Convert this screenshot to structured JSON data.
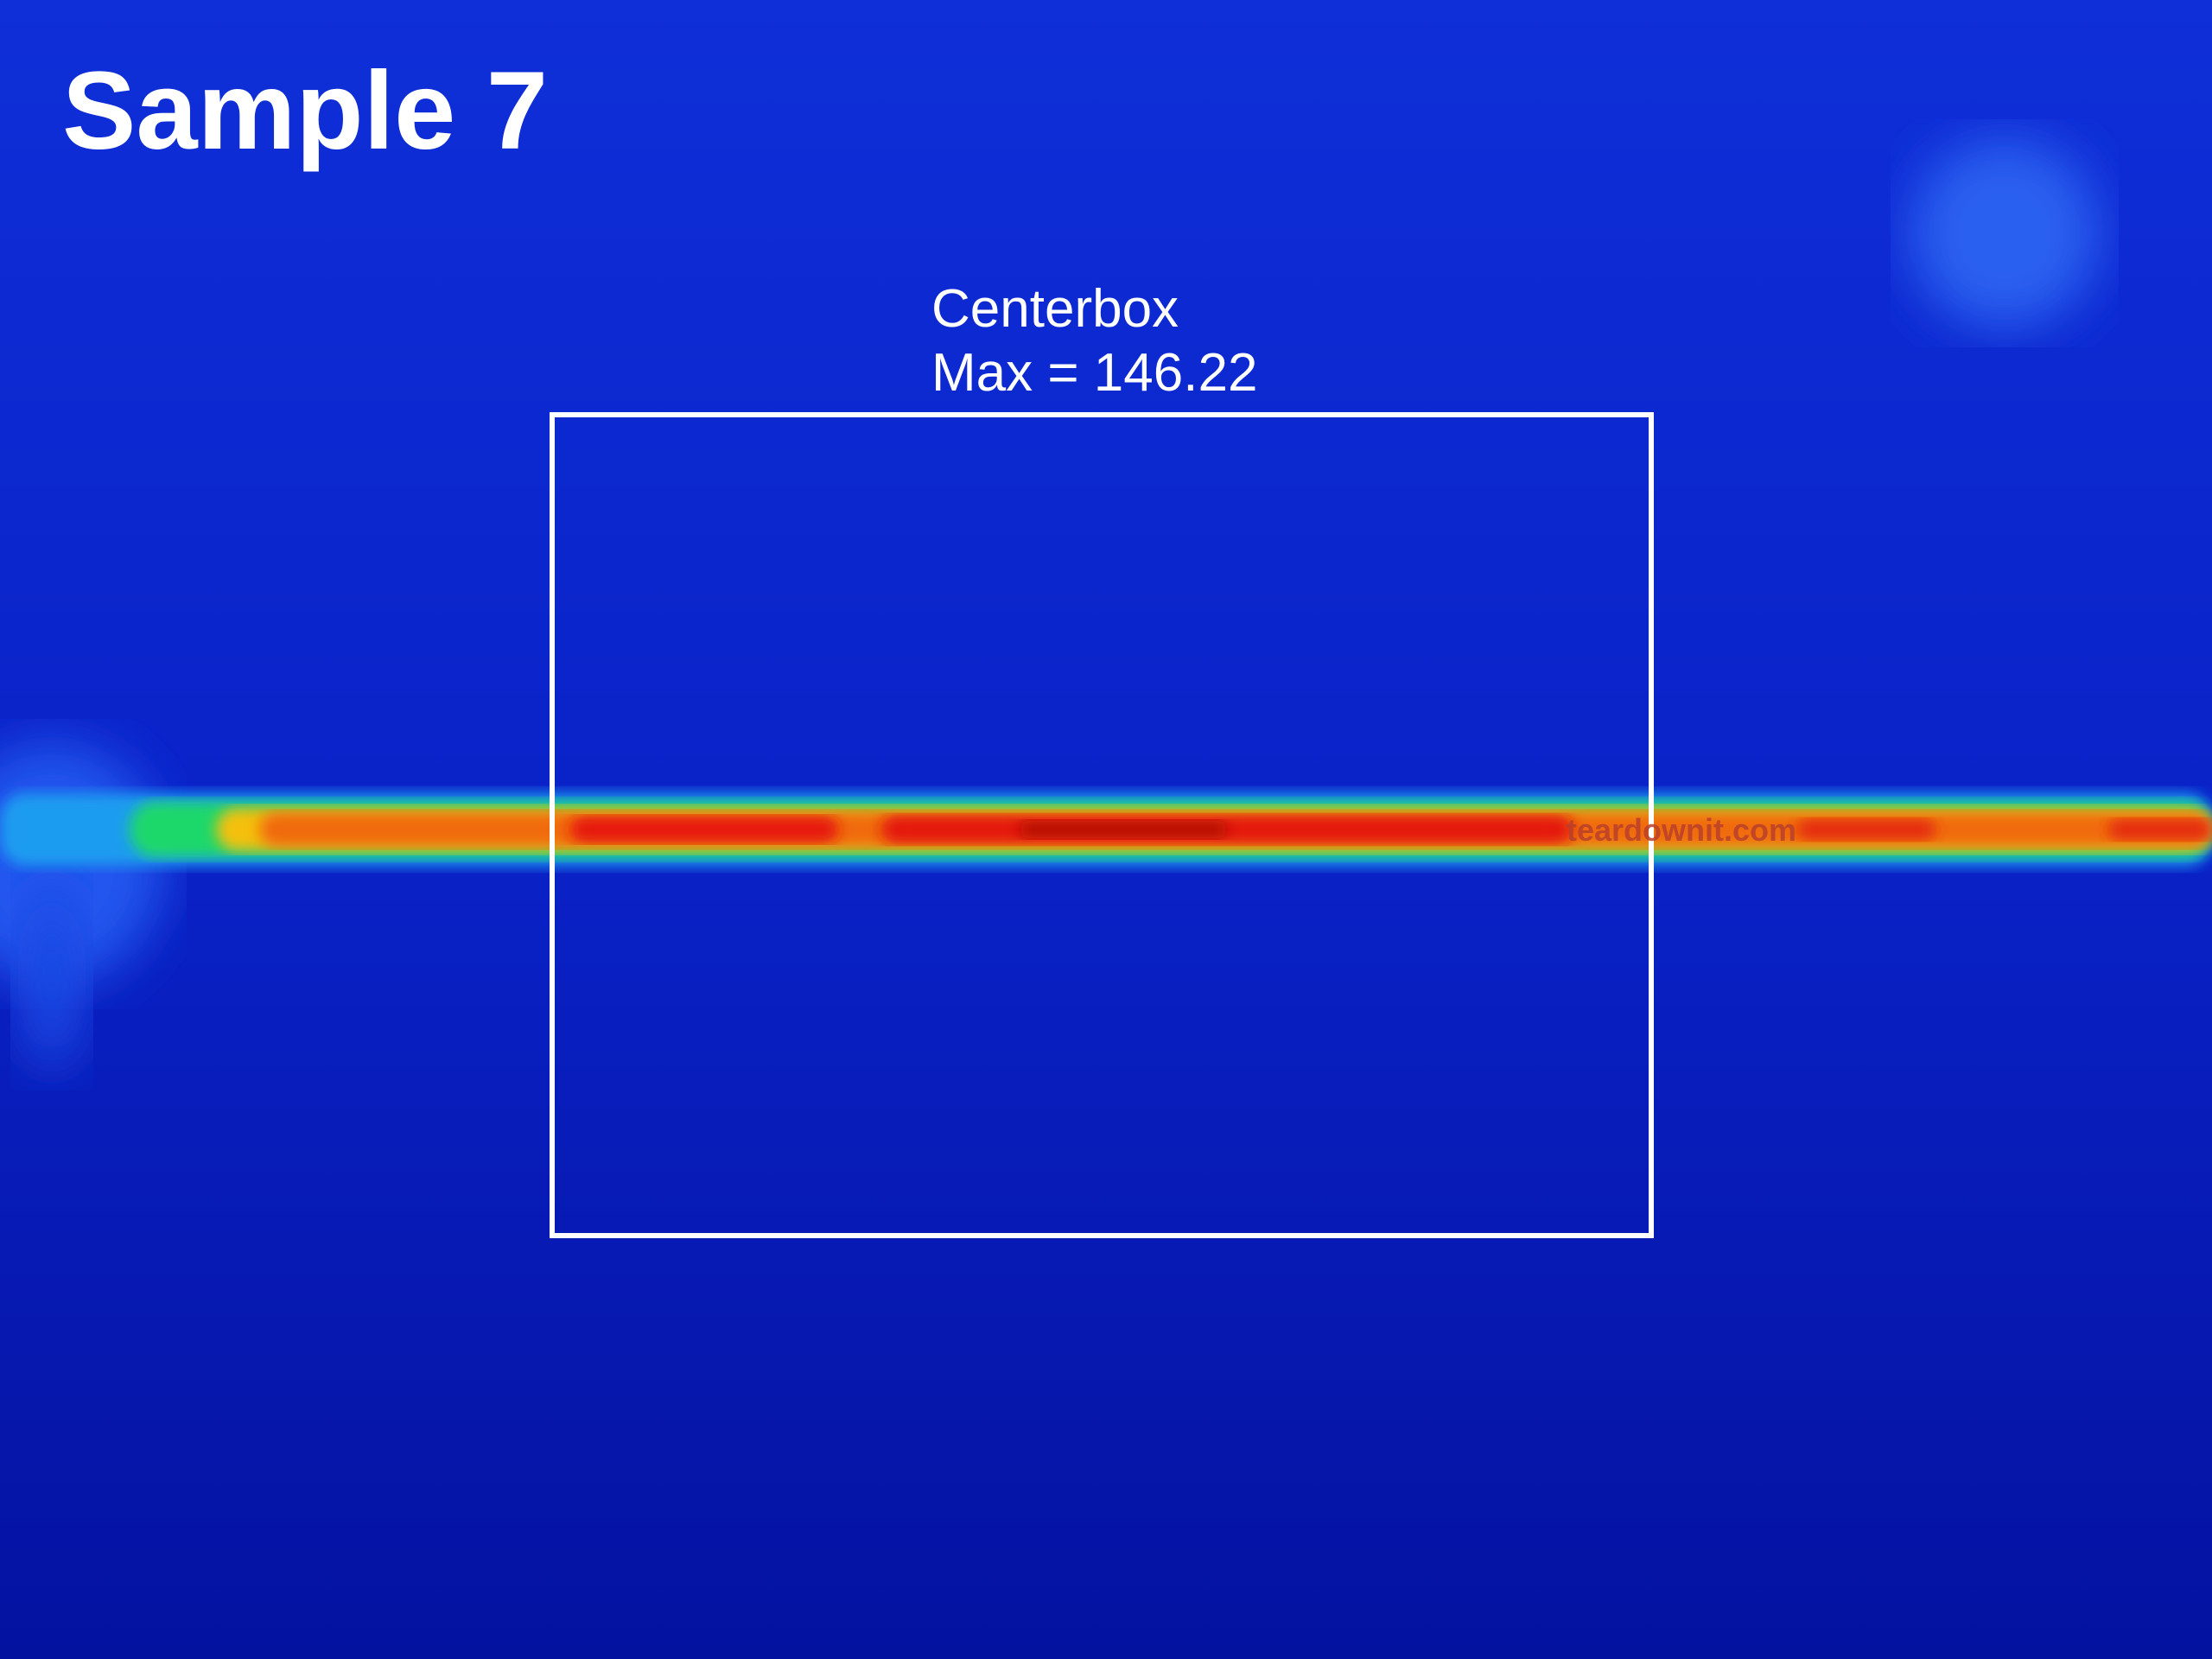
{
  "title": "Sample 7",
  "roi": {
    "label": "Centerbox",
    "max_text": "Max = 146.22"
  },
  "watermark": "teardownit.com"
}
